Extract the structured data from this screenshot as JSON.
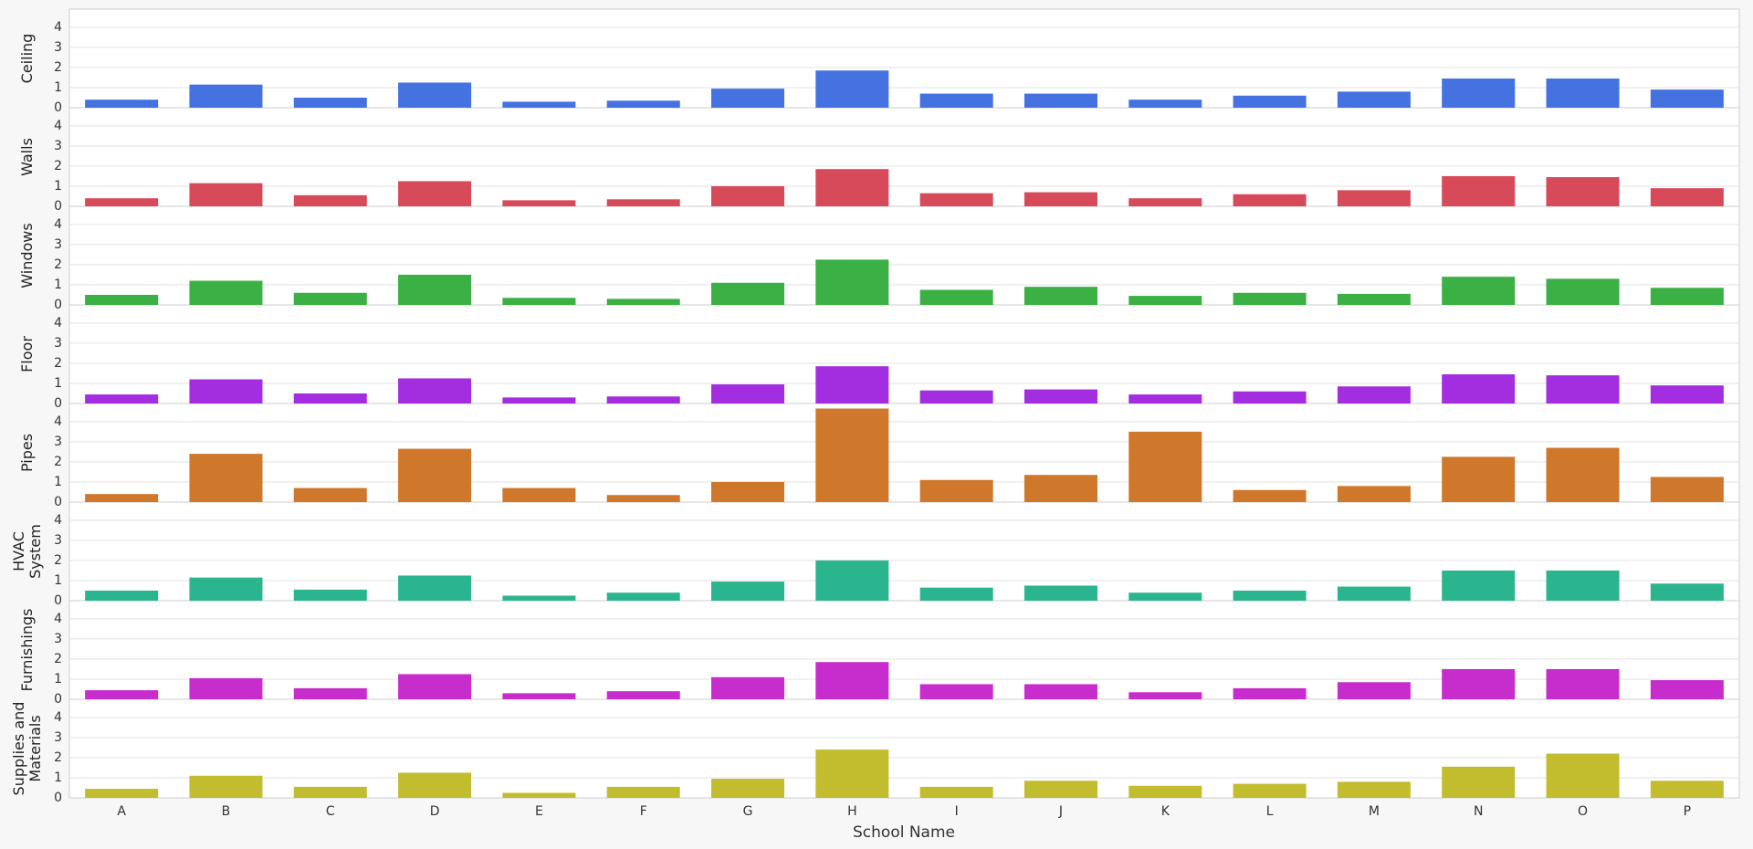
{
  "chart_data": {
    "type": "bar",
    "categories": [
      "A",
      "B",
      "C",
      "D",
      "E",
      "F",
      "G",
      "H",
      "I",
      "J",
      "K",
      "L",
      "M",
      "N",
      "O",
      "P"
    ],
    "xlabel": "School Name",
    "ylim": [
      0,
      4.9
    ],
    "yticks": [
      0,
      1,
      2,
      3,
      4
    ],
    "grid": true,
    "series": [
      {
        "name": "Ceiling",
        "color": "#4472e0",
        "values": [
          0.4,
          1.15,
          0.5,
          1.25,
          0.3,
          0.35,
          0.95,
          1.85,
          0.7,
          0.7,
          0.4,
          0.6,
          0.8,
          1.45,
          1.45,
          0.9
        ]
      },
      {
        "name": "Walls",
        "color": "#d64a5a",
        "values": [
          0.4,
          1.15,
          0.55,
          1.25,
          0.3,
          0.35,
          1.0,
          1.85,
          0.65,
          0.7,
          0.4,
          0.6,
          0.8,
          1.5,
          1.45,
          0.9
        ]
      },
      {
        "name": "Windows",
        "color": "#3bb044",
        "values": [
          0.5,
          1.2,
          0.6,
          1.5,
          0.35,
          0.3,
          1.1,
          2.25,
          0.75,
          0.9,
          0.45,
          0.6,
          0.55,
          1.4,
          1.3,
          0.85
        ]
      },
      {
        "name": "Floor",
        "color": "#a22ee0",
        "values": [
          0.45,
          1.2,
          0.5,
          1.25,
          0.3,
          0.35,
          0.95,
          1.85,
          0.65,
          0.7,
          0.45,
          0.6,
          0.85,
          1.45,
          1.4,
          0.9
        ]
      },
      {
        "name": "Pipes",
        "color": "#cf772a",
        "values": [
          0.4,
          2.4,
          0.7,
          2.65,
          0.7,
          0.35,
          1.0,
          4.65,
          1.1,
          1.35,
          3.5,
          0.6,
          0.8,
          2.25,
          2.7,
          1.25
        ]
      },
      {
        "name": "HVAC System",
        "color": "#2bb58f",
        "values": [
          0.5,
          1.15,
          0.55,
          1.25,
          0.25,
          0.4,
          0.95,
          2.0,
          0.65,
          0.75,
          0.4,
          0.5,
          0.7,
          1.5,
          1.5,
          0.85
        ]
      },
      {
        "name": "Furnishings",
        "color": "#c72ccc",
        "values": [
          0.45,
          1.05,
          0.55,
          1.25,
          0.3,
          0.4,
          1.1,
          1.85,
          0.75,
          0.75,
          0.35,
          0.55,
          0.85,
          1.5,
          1.5,
          0.95
        ]
      },
      {
        "name": "Supplies and Materials",
        "color": "#c2bd2e",
        "values": [
          0.45,
          1.1,
          0.55,
          1.25,
          0.25,
          0.55,
          0.95,
          2.4,
          0.55,
          0.85,
          0.6,
          0.7,
          0.8,
          1.55,
          2.2,
          0.85
        ]
      }
    ]
  }
}
